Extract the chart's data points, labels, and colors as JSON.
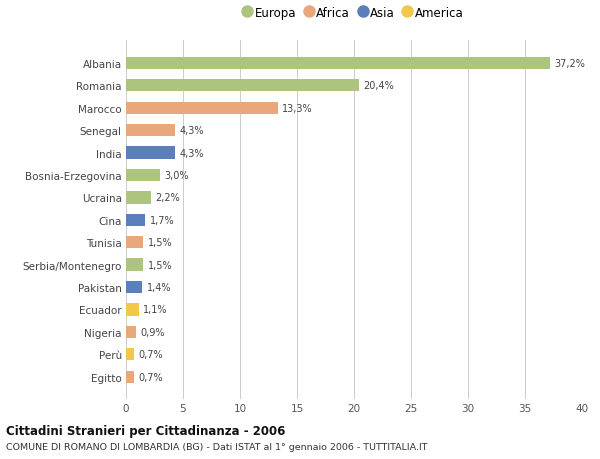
{
  "countries": [
    "Albania",
    "Romania",
    "Marocco",
    "Senegal",
    "India",
    "Bosnia-Erzegovina",
    "Ucraina",
    "Cina",
    "Tunisia",
    "Serbia/Montenegro",
    "Pakistan",
    "Ecuador",
    "Nigeria",
    "Perù",
    "Egitto"
  ],
  "values": [
    37.2,
    20.4,
    13.3,
    4.3,
    4.3,
    3.0,
    2.2,
    1.7,
    1.5,
    1.5,
    1.4,
    1.1,
    0.9,
    0.7,
    0.7
  ],
  "labels": [
    "37,2%",
    "20,4%",
    "13,3%",
    "4,3%",
    "4,3%",
    "3,0%",
    "2,2%",
    "1,7%",
    "1,5%",
    "1,5%",
    "1,4%",
    "1,1%",
    "0,9%",
    "0,7%",
    "0,7%"
  ],
  "continents": [
    "Europa",
    "Europa",
    "Africa",
    "Africa",
    "Asia",
    "Europa",
    "Europa",
    "Asia",
    "Africa",
    "Europa",
    "Asia",
    "America",
    "Africa",
    "America",
    "Africa"
  ],
  "colors": {
    "Europa": "#adc47e",
    "Africa": "#e8a87c",
    "Asia": "#5b7fba",
    "America": "#f2c84b"
  },
  "legend_order": [
    "Europa",
    "Africa",
    "Asia",
    "America"
  ],
  "xlim": [
    0,
    40
  ],
  "xticks": [
    0,
    5,
    10,
    15,
    20,
    25,
    30,
    35,
    40
  ],
  "title_main": "Cittadini Stranieri per Cittadinanza - 2006",
  "title_sub": "COMUNE DI ROMANO DI LOMBARDIA (BG) - Dati ISTAT al 1° gennaio 2006 - TUTTITALIA.IT",
  "background_color": "#ffffff",
  "grid_color": "#cccccc",
  "bar_height": 0.55
}
